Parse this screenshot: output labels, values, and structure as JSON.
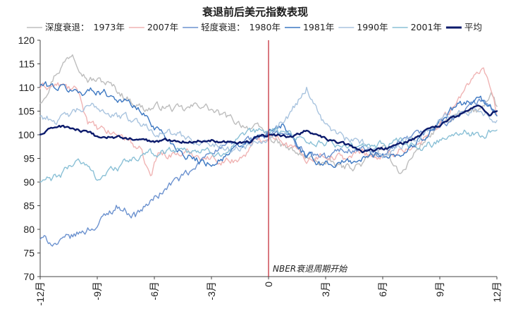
{
  "chart_data": {
    "type": "line",
    "title": "衰退前后美元指数表现",
    "legend_groups": [
      {
        "label": "深度衰退：",
        "after": "1973年"
      },
      {
        "label": "轻度衰退：",
        "after": "1980年"
      }
    ],
    "series": [
      {
        "name": "1973年",
        "group": "深度衰退",
        "color": "#bdbdbd",
        "width": 1.4,
        "points": [
          [
            -12,
            107
          ],
          [
            -11.2,
            113
          ],
          [
            -10.3,
            117.5
          ],
          [
            -9.5,
            112
          ],
          [
            -8.5,
            111
          ],
          [
            -7.5,
            108
          ],
          [
            -6.5,
            105.5
          ],
          [
            -5.5,
            106
          ],
          [
            -4.5,
            105
          ],
          [
            -3.5,
            106.5
          ],
          [
            -2.5,
            104
          ],
          [
            -1.5,
            102.5
          ],
          [
            -0.5,
            101
          ],
          [
            0,
            100
          ],
          [
            0.5,
            98
          ],
          [
            1,
            97
          ],
          [
            2,
            95
          ],
          [
            3,
            94
          ],
          [
            4,
            93
          ],
          [
            5,
            94
          ],
          [
            6,
            97
          ],
          [
            7,
            92
          ],
          [
            8,
            98
          ],
          [
            9,
            102
          ],
          [
            10,
            104
          ],
          [
            11,
            105
          ],
          [
            11.7,
            109
          ],
          [
            12,
            106
          ]
        ]
      },
      {
        "name": "2007年",
        "group": "深度衰退",
        "color": "#f0b4b4",
        "width": 1.4,
        "points": [
          [
            -12,
            110
          ],
          [
            -11,
            110.5
          ],
          [
            -10,
            109
          ],
          [
            -9.5,
            103
          ],
          [
            -9,
            101
          ],
          [
            -8.5,
            100.5
          ],
          [
            -7.5,
            99.5
          ],
          [
            -6.8,
            97
          ],
          [
            -6.2,
            91
          ],
          [
            -5.8,
            96
          ],
          [
            -5,
            96
          ],
          [
            -4,
            96
          ],
          [
            -3,
            95
          ],
          [
            -2,
            94.5
          ],
          [
            -1.5,
            95
          ],
          [
            -0.5,
            99
          ],
          [
            0,
            100
          ],
          [
            0.5,
            100
          ],
          [
            1,
            98
          ],
          [
            2,
            95
          ],
          [
            3,
            96
          ],
          [
            4,
            95
          ],
          [
            5,
            96.5
          ],
          [
            6,
            95
          ],
          [
            7,
            97
          ],
          [
            8,
            98
          ],
          [
            9,
            103
          ],
          [
            10,
            107
          ],
          [
            10.8,
            113
          ],
          [
            11.3,
            114
          ],
          [
            11.7,
            108
          ],
          [
            12,
            104
          ]
        ]
      },
      {
        "name": "1980年",
        "group": "轻度衰退",
        "color": "#6c92cf",
        "width": 1.4,
        "points": [
          [
            -12,
            78
          ],
          [
            -11,
            77
          ],
          [
            -10,
            79
          ],
          [
            -9,
            81
          ],
          [
            -8,
            85
          ],
          [
            -7,
            83
          ],
          [
            -6,
            86.5
          ],
          [
            -5,
            90
          ],
          [
            -4,
            92
          ],
          [
            -3,
            97
          ],
          [
            -2,
            97.5
          ],
          [
            -1,
            99
          ],
          [
            0,
            100
          ],
          [
            1,
            100
          ],
          [
            2,
            96
          ],
          [
            3,
            95
          ],
          [
            4,
            97
          ],
          [
            5,
            97
          ],
          [
            6,
            95
          ],
          [
            7,
            98
          ],
          [
            8,
            100
          ],
          [
            9,
            102
          ],
          [
            10,
            104
          ],
          [
            11,
            107
          ],
          [
            12,
            105
          ]
        ]
      },
      {
        "name": "1981年",
        "group": "轻度衰退",
        "color": "#3d78c2",
        "width": 1.4,
        "points": [
          [
            -12,
            110.5
          ],
          [
            -11,
            110
          ],
          [
            -10,
            109
          ],
          [
            -9,
            109.5
          ],
          [
            -8,
            108
          ],
          [
            -7,
            106
          ],
          [
            -6,
            102
          ],
          [
            -5,
            98
          ],
          [
            -4,
            95
          ],
          [
            -3,
            94
          ],
          [
            -2,
            96
          ],
          [
            -1,
            98.5
          ],
          [
            0,
            100
          ],
          [
            0.7,
            102
          ],
          [
            1.5,
            98
          ],
          [
            2,
            95
          ],
          [
            3,
            94
          ],
          [
            4,
            94
          ],
          [
            5,
            95
          ],
          [
            6,
            96
          ],
          [
            7,
            96
          ],
          [
            8,
            99
          ],
          [
            9,
            103
          ],
          [
            10,
            106
          ],
          [
            11,
            108
          ],
          [
            12,
            104
          ]
        ]
      },
      {
        "name": "1990年",
        "group": "轻度衰退",
        "color": "#a9c4df",
        "width": 1.4,
        "points": [
          [
            -12,
            104
          ],
          [
            -11,
            103
          ],
          [
            -10,
            105
          ],
          [
            -9,
            106
          ],
          [
            -8,
            104
          ],
          [
            -7,
            103
          ],
          [
            -6,
            101
          ],
          [
            -5,
            100
          ],
          [
            -4,
            99
          ],
          [
            -3,
            98
          ],
          [
            -2,
            97
          ],
          [
            -1,
            98
          ],
          [
            0,
            100
          ],
          [
            1,
            104
          ],
          [
            2,
            110
          ],
          [
            3,
            102
          ],
          [
            4,
            99
          ],
          [
            5,
            98
          ],
          [
            6,
            96
          ],
          [
            7,
            98
          ],
          [
            8,
            100
          ],
          [
            9,
            103
          ],
          [
            10,
            105
          ],
          [
            11,
            106
          ],
          [
            12,
            103
          ]
        ]
      },
      {
        "name": "2001年",
        "group": "轻度衰退",
        "color": "#8ac0d6",
        "width": 1.4,
        "points": [
          [
            -12,
            90
          ],
          [
            -11,
            91
          ],
          [
            -10,
            95
          ],
          [
            -9,
            91
          ],
          [
            -8,
            93
          ],
          [
            -7,
            95
          ],
          [
            -6,
            96
          ],
          [
            -5,
            97
          ],
          [
            -4,
            97
          ],
          [
            -3,
            96
          ],
          [
            -2,
            97
          ],
          [
            -1,
            100
          ],
          [
            0,
            101
          ],
          [
            1,
            100.5
          ],
          [
            2,
            99
          ],
          [
            3,
            98
          ],
          [
            4,
            98
          ],
          [
            5,
            97
          ],
          [
            6,
            98
          ],
          [
            7,
            98
          ],
          [
            8,
            97
          ],
          [
            9,
            99
          ],
          [
            10,
            101
          ],
          [
            11,
            100
          ],
          [
            12,
            101
          ]
        ]
      },
      {
        "name": "平均",
        "group": "平均",
        "color": "#0b1a6b",
        "width": 2.4,
        "points": [
          [
            -12,
            100
          ],
          [
            -11,
            102
          ],
          [
            -10,
            101
          ],
          [
            -9,
            99.5
          ],
          [
            -8,
            99.5
          ],
          [
            -7,
            99
          ],
          [
            -6,
            98.5
          ],
          [
            -5,
            99
          ],
          [
            -4,
            98.5
          ],
          [
            -3,
            99
          ],
          [
            -2,
            98.5
          ],
          [
            -1,
            98.5
          ],
          [
            -0.5,
            99.5
          ],
          [
            0,
            100
          ],
          [
            1,
            99.5
          ],
          [
            2,
            101
          ],
          [
            3,
            99
          ],
          [
            4,
            98
          ],
          [
            5,
            96.5
          ],
          [
            6,
            97
          ],
          [
            7,
            98
          ],
          [
            8,
            100
          ],
          [
            9,
            102
          ],
          [
            10,
            104
          ],
          [
            11,
            106.5
          ],
          [
            11.6,
            104
          ],
          [
            12,
            105
          ]
        ]
      }
    ],
    "xaxis": {
      "ticks": [
        -12,
        -9,
        -6,
        -3,
        0,
        3,
        6,
        9,
        12
      ],
      "labels": [
        "-12月",
        "-9月",
        "-6月",
        "-3月",
        "0",
        "3月",
        "6月",
        "9月",
        "12月"
      ],
      "range": [
        -12,
        12
      ]
    },
    "yaxis": {
      "range": [
        70,
        120
      ],
      "ticks": [
        70,
        75,
        80,
        85,
        90,
        95,
        100,
        105,
        110,
        115,
        120
      ]
    },
    "vline": {
      "x": 0,
      "color": "#c0202c",
      "label": "NBER衰退周期开始"
    },
    "legend_position": "top",
    "grid": false
  }
}
